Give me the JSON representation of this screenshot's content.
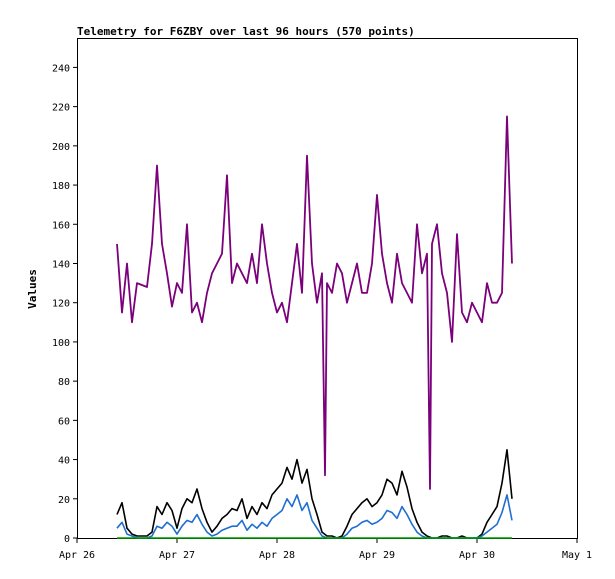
{
  "chart_data": {
    "type": "line",
    "title": "Telemetry for F6ZBY over last 96 hours (570 points)",
    "xlabel": "",
    "ylabel": "Values",
    "x_ticks": [
      "Apr 26",
      "Apr 27",
      "Apr 28",
      "Apr 29",
      "Apr 30",
      "May 1"
    ],
    "x_range": [
      0,
      5
    ],
    "y_ticks": [
      0,
      20,
      40,
      60,
      80,
      100,
      120,
      140,
      160,
      180,
      200,
      220,
      240
    ],
    "ylim": [
      0,
      255
    ],
    "grid": false,
    "x_unit": "days since Apr 26 00:00",
    "series": [
      {
        "color": "#7b007b",
        "x": [
          0.4,
          0.45,
          0.5,
          0.55,
          0.6,
          0.7,
          0.75,
          0.8,
          0.85,
          0.9,
          0.95,
          1.0,
          1.05,
          1.1,
          1.15,
          1.2,
          1.25,
          1.3,
          1.35,
          1.4,
          1.45,
          1.5,
          1.55,
          1.6,
          1.65,
          1.7,
          1.75,
          1.8,
          1.85,
          1.9,
          1.95,
          2.0,
          2.05,
          2.1,
          2.15,
          2.2,
          2.25,
          2.3,
          2.35,
          2.4,
          2.45,
          2.48,
          2.5,
          2.55,
          2.6,
          2.65,
          2.7,
          2.75,
          2.8,
          2.85,
          2.9,
          2.95,
          3.0,
          3.05,
          3.1,
          3.15,
          3.2,
          3.25,
          3.3,
          3.35,
          3.4,
          3.45,
          3.5,
          3.53,
          3.55,
          3.6,
          3.65,
          3.7,
          3.75,
          3.8,
          3.85,
          3.9,
          3.95,
          4.0,
          4.05,
          4.1,
          4.15,
          4.2,
          4.25,
          4.3,
          4.35
        ],
        "y": [
          150,
          115,
          140,
          110,
          130,
          128,
          150,
          190,
          150,
          135,
          118,
          130,
          125,
          160,
          115,
          120,
          110,
          125,
          135,
          140,
          145,
          185,
          130,
          140,
          135,
          130,
          145,
          130,
          160,
          140,
          125,
          115,
          120,
          110,
          130,
          150,
          125,
          195,
          140,
          120,
          135,
          32,
          130,
          125,
          140,
          135,
          120,
          130,
          140,
          125,
          125,
          140,
          175,
          145,
          130,
          120,
          145,
          130,
          125,
          120,
          160,
          135,
          145,
          25,
          150,
          160,
          135,
          125,
          100,
          155,
          115,
          110,
          120,
          115,
          110,
          130,
          120,
          120,
          125,
          215,
          140
        ]
      },
      {
        "color": "#000000",
        "x": [
          0.4,
          0.45,
          0.5,
          0.55,
          0.6,
          0.7,
          0.75,
          0.8,
          0.85,
          0.9,
          0.95,
          1.0,
          1.05,
          1.1,
          1.15,
          1.2,
          1.25,
          1.3,
          1.35,
          1.4,
          1.45,
          1.5,
          1.55,
          1.6,
          1.65,
          1.7,
          1.75,
          1.8,
          1.85,
          1.9,
          1.95,
          2.0,
          2.05,
          2.1,
          2.15,
          2.2,
          2.25,
          2.3,
          2.35,
          2.4,
          2.45,
          2.5,
          2.55,
          2.6,
          2.65,
          2.7,
          2.75,
          2.8,
          2.85,
          2.9,
          2.95,
          3.0,
          3.05,
          3.1,
          3.15,
          3.2,
          3.25,
          3.3,
          3.35,
          3.4,
          3.45,
          3.5,
          3.55,
          3.6,
          3.65,
          3.7,
          3.75,
          3.8,
          3.85,
          3.9,
          3.95,
          4.0,
          4.05,
          4.1,
          4.15,
          4.2,
          4.25,
          4.3,
          4.35
        ],
        "y": [
          12,
          18,
          5,
          2,
          1,
          1,
          3,
          16,
          12,
          18,
          14,
          5,
          15,
          20,
          18,
          25,
          15,
          8,
          3,
          6,
          10,
          12,
          15,
          14,
          20,
          10,
          16,
          12,
          18,
          15,
          22,
          25,
          28,
          36,
          30,
          40,
          28,
          35,
          20,
          12,
          3,
          1,
          1,
          0,
          1,
          6,
          12,
          15,
          18,
          20,
          16,
          18,
          22,
          30,
          28,
          22,
          34,
          26,
          15,
          8,
          3,
          1,
          0,
          0,
          1,
          1,
          0,
          0,
          1,
          0,
          0,
          0,
          2,
          8,
          12,
          16,
          28,
          45,
          20
        ]
      },
      {
        "color": "#1f6fd0",
        "x": [
          0.4,
          0.45,
          0.5,
          0.55,
          0.6,
          0.7,
          0.75,
          0.8,
          0.85,
          0.9,
          0.95,
          1.0,
          1.05,
          1.1,
          1.15,
          1.2,
          1.25,
          1.3,
          1.35,
          1.4,
          1.45,
          1.5,
          1.55,
          1.6,
          1.65,
          1.7,
          1.75,
          1.8,
          1.85,
          1.9,
          1.95,
          2.0,
          2.05,
          2.1,
          2.15,
          2.2,
          2.25,
          2.3,
          2.35,
          2.4,
          2.45,
          2.5,
          2.55,
          2.6,
          2.65,
          2.7,
          2.75,
          2.8,
          2.85,
          2.9,
          2.95,
          3.0,
          3.05,
          3.1,
          3.15,
          3.2,
          3.25,
          3.3,
          3.35,
          3.4,
          3.45,
          3.5,
          3.55,
          3.6,
          3.65,
          3.7,
          3.75,
          3.8,
          3.85,
          3.9,
          3.95,
          4.0,
          4.05,
          4.1,
          4.15,
          4.2,
          4.25,
          4.3,
          4.35
        ],
        "y": [
          5,
          8,
          2,
          1,
          0,
          0,
          1,
          6,
          5,
          8,
          6,
          2,
          6,
          9,
          8,
          12,
          7,
          3,
          1,
          2,
          4,
          5,
          6,
          6,
          9,
          4,
          7,
          5,
          8,
          6,
          10,
          12,
          14,
          20,
          16,
          22,
          14,
          18,
          9,
          5,
          1,
          0,
          0,
          0,
          0,
          2,
          5,
          6,
          8,
          9,
          7,
          8,
          10,
          14,
          13,
          10,
          16,
          12,
          7,
          3,
          1,
          0,
          0,
          0,
          0,
          0,
          0,
          0,
          0,
          0,
          0,
          0,
          1,
          3,
          5,
          7,
          13,
          22,
          9
        ]
      },
      {
        "color": "#00a000",
        "x": [
          0.4,
          4.35
        ],
        "y": [
          0,
          0
        ]
      }
    ]
  }
}
